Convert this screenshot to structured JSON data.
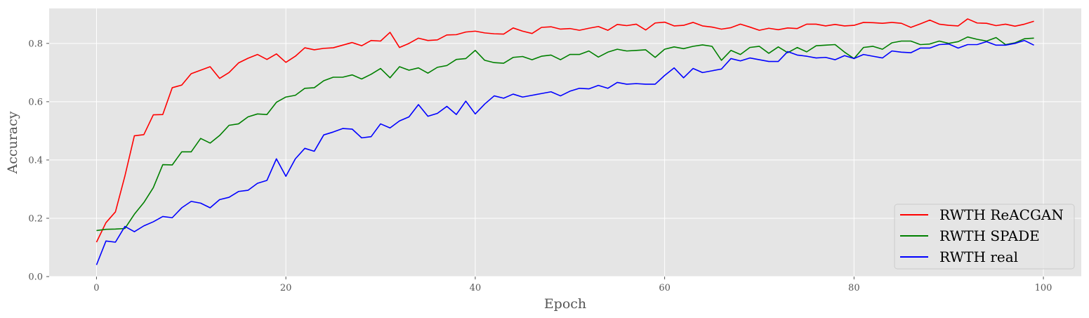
{
  "chart_data": {
    "type": "line",
    "xlabel": "Epoch",
    "ylabel": "Accuracy",
    "xlim": [
      -5,
      104
    ],
    "ylim": [
      0.0,
      0.92
    ],
    "xticks": [
      0,
      20,
      40,
      60,
      80,
      100
    ],
    "yticks": [
      0.0,
      0.2,
      0.4,
      0.6,
      0.8
    ],
    "xtick_labels": [
      "0",
      "20",
      "40",
      "60",
      "80",
      "100"
    ],
    "ytick_labels": [
      "0.0",
      "0.2",
      "0.4",
      "0.6",
      "0.8"
    ],
    "grid": true,
    "legend_position": "lower-right",
    "background": "#e5e5e5",
    "series": [
      {
        "name": "RWTH ReACGAN",
        "color": "#ff0000",
        "values": [
          0.118,
          0.185,
          0.222,
          0.345,
          0.483,
          0.487,
          0.555,
          0.556,
          0.648,
          0.657,
          0.696,
          0.708,
          0.72,
          0.68,
          0.7,
          0.733,
          0.749,
          0.762,
          0.745,
          0.764,
          0.735,
          0.756,
          0.785,
          0.778,
          0.783,
          0.785,
          0.794,
          0.803,
          0.792,
          0.81,
          0.808,
          0.838,
          0.786,
          0.8,
          0.818,
          0.81,
          0.812,
          0.829,
          0.83,
          0.839,
          0.842,
          0.836,
          0.833,
          0.832,
          0.853,
          0.842,
          0.834,
          0.855,
          0.857,
          0.849,
          0.851,
          0.845,
          0.852,
          0.858,
          0.845,
          0.865,
          0.861,
          0.866,
          0.846,
          0.87,
          0.873,
          0.86,
          0.862,
          0.872,
          0.86,
          0.856,
          0.849,
          0.854,
          0.866,
          0.856,
          0.845,
          0.852,
          0.847,
          0.853,
          0.851,
          0.866,
          0.866,
          0.86,
          0.865,
          0.86,
          0.862,
          0.872,
          0.871,
          0.869,
          0.872,
          0.869,
          0.855,
          0.867,
          0.88,
          0.866,
          0.862,
          0.86,
          0.884,
          0.87,
          0.869,
          0.861,
          0.866,
          0.859,
          0.866,
          0.876
        ]
      },
      {
        "name": "RWTH SPADE",
        "color": "#008000",
        "values": [
          0.158,
          0.162,
          0.163,
          0.165,
          0.214,
          0.254,
          0.305,
          0.384,
          0.383,
          0.428,
          0.428,
          0.474,
          0.458,
          0.484,
          0.519,
          0.524,
          0.548,
          0.558,
          0.556,
          0.598,
          0.616,
          0.622,
          0.646,
          0.648,
          0.672,
          0.684,
          0.684,
          0.692,
          0.678,
          0.694,
          0.714,
          0.682,
          0.72,
          0.708,
          0.716,
          0.698,
          0.718,
          0.724,
          0.745,
          0.748,
          0.776,
          0.742,
          0.734,
          0.732,
          0.752,
          0.755,
          0.744,
          0.756,
          0.76,
          0.744,
          0.762,
          0.762,
          0.774,
          0.753,
          0.77,
          0.78,
          0.774,
          0.776,
          0.778,
          0.752,
          0.78,
          0.788,
          0.782,
          0.79,
          0.795,
          0.79,
          0.742,
          0.776,
          0.762,
          0.786,
          0.79,
          0.766,
          0.788,
          0.768,
          0.786,
          0.771,
          0.792,
          0.794,
          0.796,
          0.77,
          0.748,
          0.786,
          0.79,
          0.78,
          0.802,
          0.808,
          0.808,
          0.796,
          0.798,
          0.808,
          0.8,
          0.806,
          0.822,
          0.814,
          0.808,
          0.82,
          0.796,
          0.802,
          0.816,
          0.818
        ]
      },
      {
        "name": "RWTH real",
        "color": "#0000ff",
        "values": [
          0.04,
          0.122,
          0.118,
          0.172,
          0.154,
          0.174,
          0.188,
          0.206,
          0.202,
          0.236,
          0.258,
          0.252,
          0.236,
          0.264,
          0.272,
          0.292,
          0.296,
          0.32,
          0.33,
          0.404,
          0.344,
          0.404,
          0.44,
          0.43,
          0.486,
          0.496,
          0.508,
          0.506,
          0.476,
          0.48,
          0.524,
          0.51,
          0.534,
          0.548,
          0.59,
          0.55,
          0.56,
          0.584,
          0.556,
          0.602,
          0.558,
          0.592,
          0.62,
          0.612,
          0.626,
          0.616,
          0.622,
          0.628,
          0.634,
          0.62,
          0.636,
          0.646,
          0.644,
          0.656,
          0.646,
          0.666,
          0.66,
          0.662,
          0.66,
          0.66,
          0.69,
          0.716,
          0.682,
          0.714,
          0.7,
          0.706,
          0.712,
          0.748,
          0.74,
          0.75,
          0.744,
          0.738,
          0.738,
          0.772,
          0.76,
          0.756,
          0.75,
          0.752,
          0.744,
          0.758,
          0.748,
          0.762,
          0.756,
          0.75,
          0.774,
          0.77,
          0.768,
          0.784,
          0.784,
          0.796,
          0.798,
          0.784,
          0.796,
          0.796,
          0.806,
          0.794,
          0.794,
          0.8,
          0.81,
          0.794
        ]
      }
    ]
  }
}
